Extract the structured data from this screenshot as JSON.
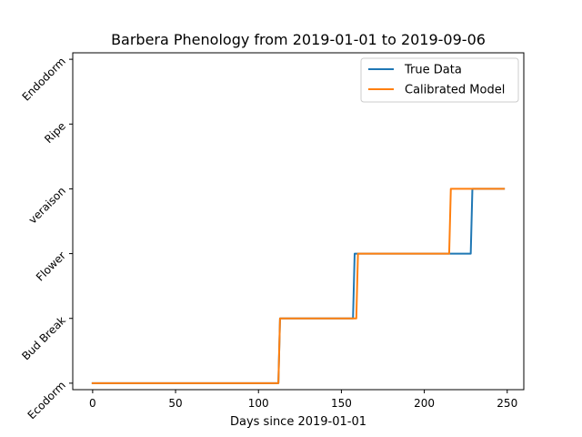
{
  "chart_data": {
    "type": "line",
    "title": "Barbera Phenology from 2019-01-01 to 2019-09-06",
    "xlabel": "Days since 2019-01-01",
    "ylabel": "",
    "xlim": [
      -12,
      260
    ],
    "ylim": [
      -0.1,
      5.1
    ],
    "xticks": [
      0,
      50,
      100,
      150,
      200,
      250
    ],
    "yticks": [
      0,
      1,
      2,
      3,
      4,
      5
    ],
    "ytick_labels": [
      "Ecodorm",
      "Bud Break",
      "Flower",
      "veraison",
      "Ripe",
      "Endodorm"
    ],
    "legend_position": "top-right",
    "grid": false,
    "series": [
      {
        "name": "True Data",
        "color": "#1f77b4",
        "points": [
          [
            0,
            0
          ],
          [
            112,
            0
          ],
          [
            113,
            1
          ],
          [
            157,
            1
          ],
          [
            158,
            2
          ],
          [
            228,
            2
          ],
          [
            229,
            3
          ],
          [
            248,
            3
          ]
        ]
      },
      {
        "name": "Calibrated Model",
        "color": "#ff7f0e",
        "points": [
          [
            0,
            0
          ],
          [
            112,
            0
          ],
          [
            113,
            1
          ],
          [
            159,
            1
          ],
          [
            160,
            2
          ],
          [
            215,
            2
          ],
          [
            216,
            3
          ],
          [
            248,
            3
          ]
        ]
      }
    ]
  }
}
